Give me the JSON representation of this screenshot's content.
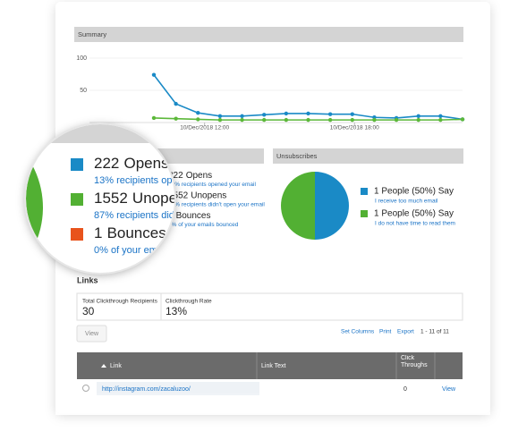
{
  "chart_data": [
    {
      "type": "line",
      "title": "Summary",
      "categories": [
        null,
        null,
        null,
        null,
        null,
        null,
        null,
        null,
        null,
        null,
        null,
        null,
        null,
        null,
        null
      ],
      "series": [
        {
          "color": "#1a8ac6",
          "values": [
            74,
            29,
            15,
            10,
            10,
            12,
            14,
            14,
            13,
            13,
            8,
            7,
            10,
            10,
            5
          ]
        },
        {
          "color": "#5cb83a",
          "values": [
            7,
            6,
            5,
            4,
            4,
            4,
            4,
            4,
            4,
            4,
            4,
            4,
            4,
            4,
            5
          ]
        }
      ],
      "ylim": [
        0,
        100
      ],
      "yticks": [
        50,
        100
      ],
      "xticks": [
        {
          "value": 2.3,
          "label": "10/Dec/2018 12:00"
        },
        {
          "value": 9.1,
          "label": "10/Dec/2018 18:00"
        }
      ]
    },
    {
      "type": "pie",
      "categories": [
        "Opens",
        "Unopens",
        "Bounces"
      ],
      "values": [
        222,
        1552,
        1
      ],
      "descriptions": [
        "13% recipients opened your email",
        "87% recipients didn't open your email",
        "0% of your emails bounced"
      ],
      "colors": [
        "#1a8ac6",
        "#52b033",
        "#e8531c"
      ]
    },
    {
      "type": "pie",
      "title": "Unsubscribes",
      "values": [
        1,
        1
      ],
      "value_labels": [
        "1 People (50%) Say",
        "1 People (50%) Say"
      ],
      "categories": [
        "I receive too much email",
        "I do not have time to read them"
      ],
      "colors": [
        "#1a8ac6",
        "#52b033"
      ]
    }
  ],
  "links": {
    "title": "Links",
    "stats": [
      {
        "label": "Total Clickthrough Recipients",
        "value": "30"
      },
      {
        "label": "Clickthrough Rate",
        "value": "13%"
      }
    ],
    "view_button": "View",
    "actions": [
      "Set Columns",
      "Print",
      "Export"
    ],
    "pagination": "1 - 11 of 11",
    "table": {
      "columns": [
        "Link",
        "Link Text",
        "Click Throughs"
      ],
      "rows": [
        {
          "link": "http://instagram.com/zacaluzoo/",
          "clicks": "0",
          "action": "View"
        }
      ]
    }
  }
}
